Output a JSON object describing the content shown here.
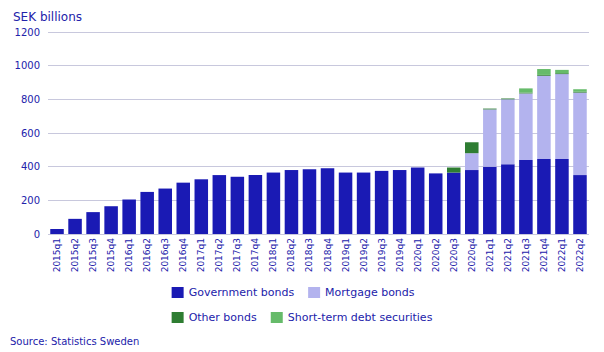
{
  "chart_data": {
    "type": "bar",
    "title": "SEK billions",
    "categories": [
      "2015q1",
      "2015q2",
      "2015q3",
      "2015q4",
      "2016q1",
      "2016q2",
      "2016q3",
      "2016q4",
      "2017q1",
      "2017q2",
      "2017q3",
      "2017q4",
      "2018q1",
      "2018q2",
      "2018q3",
      "2018q4",
      "2019q1",
      "2019q2",
      "2019q3",
      "2019q4",
      "2020q1",
      "2020q2",
      "2020q3",
      "2020q4",
      "2021q1",
      "2021q2",
      "2021q3",
      "2021q4",
      "2022q1",
      "2022q2"
    ],
    "series": [
      {
        "name": "Government bonds",
        "color": "#1a1ab4",
        "values": [
          30,
          90,
          130,
          165,
          205,
          250,
          270,
          305,
          325,
          350,
          340,
          350,
          365,
          380,
          385,
          390,
          365,
          365,
          375,
          380,
          395,
          360,
          365,
          380,
          400,
          415,
          440,
          445,
          445,
          350
        ]
      },
      {
        "name": "Mortgage bonds",
        "color": "#b3b3ee",
        "values": [
          0,
          0,
          0,
          0,
          0,
          0,
          0,
          0,
          0,
          0,
          0,
          0,
          0,
          0,
          0,
          0,
          0,
          0,
          0,
          0,
          0,
          0,
          0,
          100,
          340,
          385,
          395,
          495,
          505,
          490
        ]
      },
      {
        "name": "Other bonds",
        "color": "#2e7d32",
        "values": [
          0,
          0,
          0,
          0,
          0,
          0,
          0,
          0,
          0,
          0,
          0,
          0,
          0,
          0,
          0,
          0,
          0,
          0,
          0,
          0,
          0,
          0,
          30,
          65,
          5,
          5,
          5,
          5,
          5,
          5
        ]
      },
      {
        "name": "Short-term debt securities",
        "color": "#66bb6a",
        "values": [
          0,
          0,
          0,
          0,
          0,
          0,
          0,
          0,
          0,
          0,
          0,
          0,
          0,
          0,
          0,
          0,
          0,
          0,
          0,
          0,
          0,
          0,
          0,
          0,
          0,
          0,
          25,
          35,
          20,
          15
        ]
      }
    ],
    "annotations": [
      "Source: Statistics Sweden"
    ],
    "ylim": [
      0,
      1200
    ],
    "yticks": [
      0,
      200,
      400,
      600,
      800,
      1000,
      1200
    ],
    "stacked": true,
    "grid": true,
    "legend": "bottom"
  }
}
